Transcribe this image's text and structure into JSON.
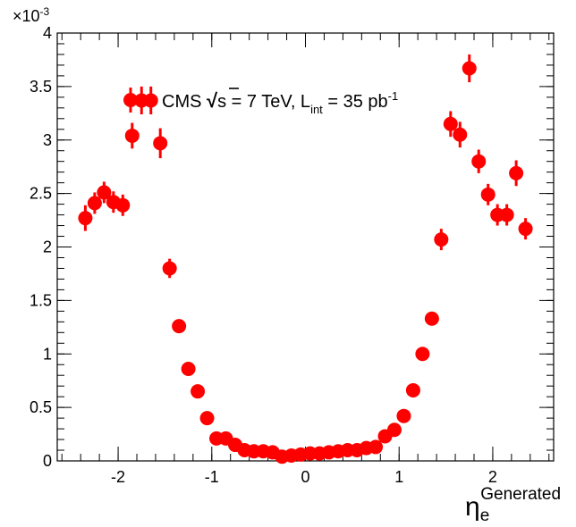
{
  "chart_data": {
    "type": "scatter",
    "y_multiplier_label": "×10",
    "y_multiplier_exp": "-3",
    "xlim": [
      -2.65,
      2.65
    ],
    "ylim": [
      0,
      4
    ],
    "x_ticks": [
      -2,
      -1,
      0,
      1,
      2
    ],
    "x_tick_labels": [
      "-2",
      "-1",
      "0",
      "1",
      "2"
    ],
    "y_ticks": [
      0,
      0.5,
      1,
      1.5,
      2,
      2.5,
      3,
      3.5,
      4
    ],
    "y_tick_labels": [
      "0",
      "0.5",
      "1",
      "1.5",
      "2",
      "2.5",
      "3",
      "3.5",
      "4"
    ],
    "xlabel_main": "η",
    "xlabel_sub": "e",
    "xlabel_sup": "Generated",
    "legend": {
      "prefix": "CMS ",
      "sqrt_symbol": "√",
      "s": "s",
      "mid": " = 7 TeV, L",
      "sub": "int",
      "suffix": " = 35 pb",
      "sup": "-1",
      "placement": "top-center"
    },
    "marker_color": "#ff0000",
    "series": [
      {
        "x": [
          -2.35,
          -2.25,
          -2.15,
          -2.05,
          -1.95,
          -1.85,
          -1.75,
          -1.65,
          -1.55,
          -1.45,
          -1.35,
          -1.25,
          -1.15,
          -1.05,
          -0.95,
          -0.85,
          -0.75,
          -0.65,
          -0.55,
          -0.45,
          -0.35,
          -0.25,
          -0.15,
          -0.05,
          0.05,
          0.15,
          0.25,
          0.35,
          0.45,
          0.55,
          0.65,
          0.75,
          0.85,
          0.95,
          1.05,
          1.15,
          1.25,
          1.35,
          1.45,
          1.55,
          1.65,
          1.75,
          1.85,
          1.95,
          2.05,
          2.15,
          2.25,
          2.35
        ],
        "y": [
          2.27,
          2.41,
          2.51,
          2.42,
          2.39,
          3.04,
          3.37,
          3.37,
          2.97,
          1.8,
          1.26,
          0.86,
          0.65,
          0.4,
          0.21,
          0.21,
          0.15,
          0.1,
          0.09,
          0.09,
          0.08,
          0.04,
          0.05,
          0.06,
          0.07,
          0.07,
          0.08,
          0.09,
          0.1,
          0.1,
          0.12,
          0.13,
          0.23,
          0.29,
          0.42,
          0.66,
          1.0,
          1.33,
          2.07,
          3.15,
          3.05,
          3.67,
          2.8,
          2.49,
          2.3,
          2.3,
          2.69,
          2.17
        ],
        "err": [
          0.12,
          0.1,
          0.1,
          0.1,
          0.1,
          0.12,
          0.13,
          0.13,
          0.14,
          0.09,
          0.06,
          0.04,
          0.03,
          0.02,
          0.01,
          0.01,
          0.01,
          0.01,
          0.01,
          0.01,
          0.01,
          0.01,
          0.01,
          0.01,
          0.01,
          0.01,
          0.01,
          0.01,
          0.01,
          0.01,
          0.01,
          0.01,
          0.01,
          0.02,
          0.02,
          0.03,
          0.04,
          0.06,
          0.1,
          0.12,
          0.12,
          0.13,
          0.11,
          0.1,
          0.1,
          0.1,
          0.12,
          0.1
        ]
      }
    ]
  }
}
